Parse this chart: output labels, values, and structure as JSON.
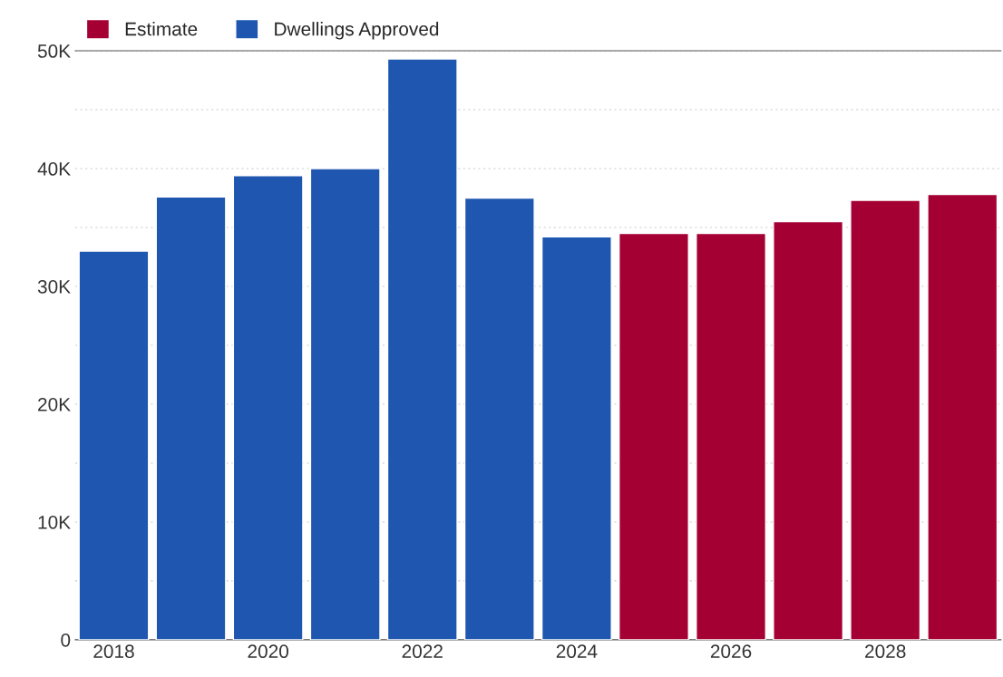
{
  "chart_data": {
    "type": "bar",
    "series": [
      {
        "name": "Estimate",
        "color": "#a50034",
        "x": [
          2025,
          2026,
          2027,
          2028,
          2029
        ],
        "values": [
          34500,
          34500,
          35500,
          37300,
          37800
        ]
      },
      {
        "name": "Dwellings Approved",
        "color": "#1f57b0",
        "x": [
          2018,
          2019,
          2020,
          2021,
          2022,
          2023,
          2024
        ],
        "values": [
          33000,
          37600,
          39400,
          40000,
          49300,
          37500,
          34200
        ]
      }
    ],
    "xlim": [
      2017.5,
      2029.5
    ],
    "xticks": [
      2018,
      2020,
      2022,
      2024,
      2026,
      2028
    ],
    "ylim": [
      0,
      50000
    ],
    "yticks": [
      {
        "value": 0,
        "label": "0"
      },
      {
        "value": 5000,
        "label": null
      },
      {
        "value": 10000,
        "label": "10K"
      },
      {
        "value": 15000,
        "label": null
      },
      {
        "value": 20000,
        "label": "20K"
      },
      {
        "value": 25000,
        "label": null
      },
      {
        "value": 30000,
        "label": "30K"
      },
      {
        "value": 35000,
        "label": null
      },
      {
        "value": 40000,
        "label": "40K"
      },
      {
        "value": 45000,
        "label": null
      },
      {
        "value": 50000,
        "label": "50K"
      }
    ],
    "grid": "y",
    "legend": "top left"
  }
}
